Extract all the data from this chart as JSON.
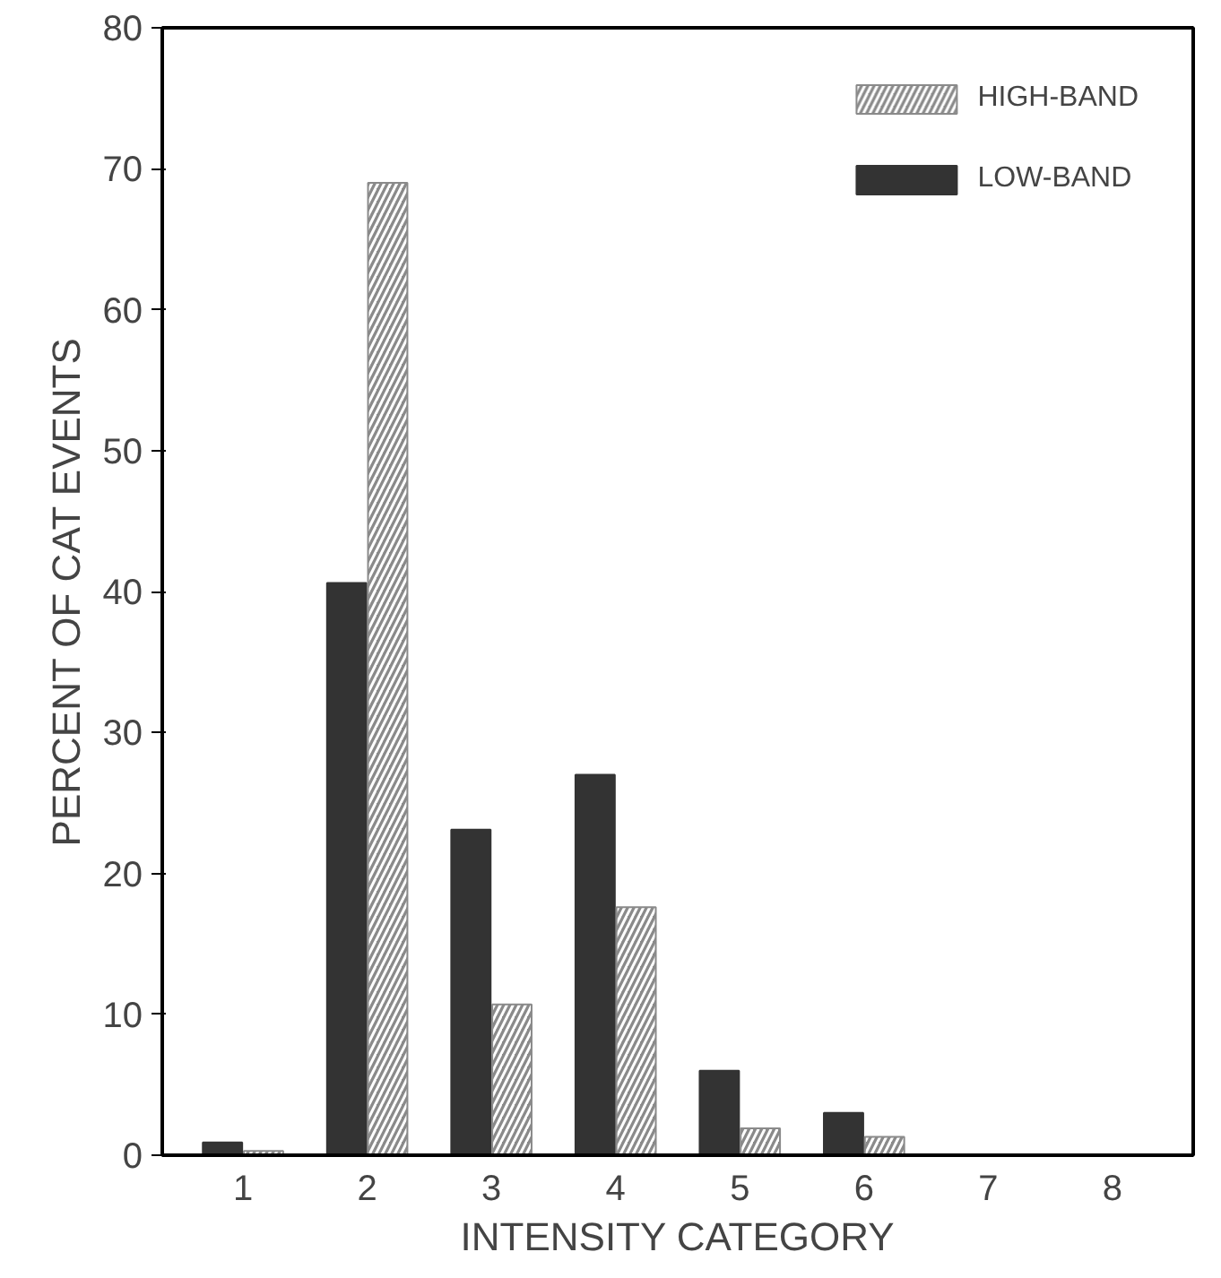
{
  "chart_data": {
    "type": "bar",
    "xlabel": "INTENSITY CATEGORY",
    "ylabel": "PERCENT OF CAT EVENTS",
    "categories": [
      "1",
      "2",
      "3",
      "4",
      "5",
      "6",
      "7",
      "8"
    ],
    "series": [
      {
        "name": "LOW-BAND",
        "color": "#333333",
        "values": [
          0.9,
          40.6,
          23.1,
          27,
          6.0,
          3.0,
          0,
          0
        ]
      },
      {
        "name": "HIGH-BAND",
        "color": "#8a8a8a",
        "values": [
          0.3,
          69,
          10.7,
          17.6,
          1.9,
          1.3,
          0,
          0
        ]
      }
    ],
    "ylim": [
      0,
      80
    ],
    "yticks": [
      0,
      10,
      20,
      30,
      40,
      50,
      60,
      70,
      80
    ],
    "grid": false,
    "legend": "top right"
  }
}
